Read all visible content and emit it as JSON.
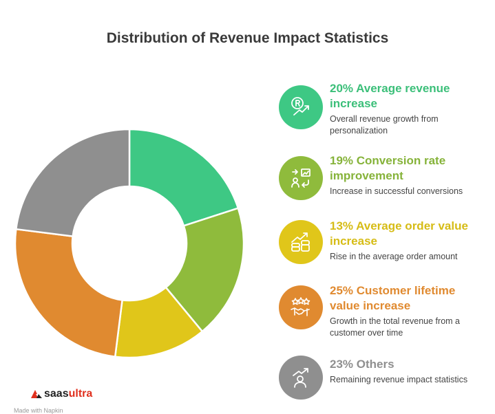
{
  "title": "Distribution of Revenue Impact Statistics",
  "chart_data": {
    "type": "pie",
    "title": "Distribution of Revenue Impact Statistics",
    "slices": [
      {
        "label": "Average revenue increase",
        "value": 20,
        "color": "#3ec884"
      },
      {
        "label": "Conversion rate improvement",
        "value": 19,
        "color": "#8fbb3c"
      },
      {
        "label": "Average order value increase",
        "value": 13,
        "color": "#e0c61a"
      },
      {
        "label": "Customer lifetime value increase",
        "value": 25,
        "color": "#e08a30"
      },
      {
        "label": "Others",
        "value": 23,
        "color": "#8f8f8f"
      }
    ]
  },
  "legend": [
    {
      "heading": "20% Average revenue increase",
      "desc": "Overall revenue growth from personalization",
      "color": "#3ec884",
      "text_color": "#3bbf79",
      "icon": "revenue-growth-icon"
    },
    {
      "heading": "19% Conversion rate improvement",
      "desc": "Increase in successful conversions",
      "color": "#8fbb3c",
      "text_color": "#86b33a",
      "icon": "conversion-icon"
    },
    {
      "heading": "13% Average order value increase",
      "desc": "Rise in the average order amount",
      "color": "#e0c61a",
      "text_color": "#d6bc16",
      "icon": "coins-growth-icon"
    },
    {
      "heading": "25% Customer lifetime value increase",
      "desc": "Growth in the total revenue from a customer over time",
      "color": "#e08a30",
      "text_color": "#e08a30",
      "icon": "handshake-stars-icon"
    },
    {
      "heading": "23% Others",
      "desc": "Remaining revenue impact statistics",
      "color": "#8f8f8f",
      "text_color": "#8f8f8f",
      "icon": "person-growth-icon"
    }
  ],
  "brand": {
    "part1": "saas",
    "part2": "ultra"
  },
  "made_with": "Made with Napkin"
}
